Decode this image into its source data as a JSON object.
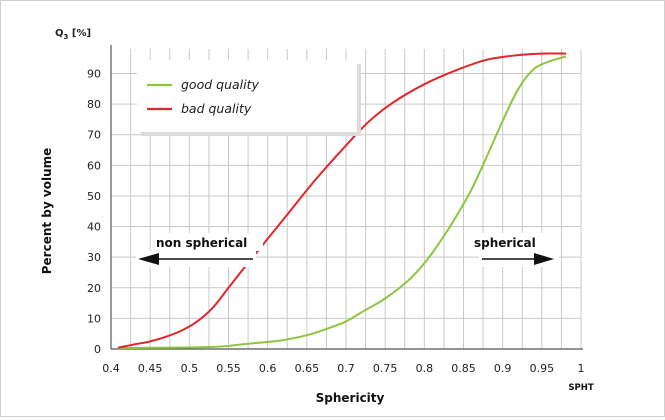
{
  "chart_data": {
    "type": "line",
    "ylabel_top": "Q",
    "ylabel_top_sub": "3",
    "ylabel_top_unit": " [%]",
    "ylabel": "Percent by volume",
    "xlabel": "Sphericity",
    "xunit": "SPHT",
    "xlim": [
      0.4,
      1.0
    ],
    "ylim": [
      0,
      98
    ],
    "xticks": [
      "0.4",
      "0.45",
      "0.5",
      "0.55",
      "0.6",
      "0.65",
      "0.7",
      "0.75",
      "0.8",
      "0.85",
      "0.9",
      "0.95",
      "1"
    ],
    "yticks": [
      0,
      10,
      20,
      30,
      40,
      50,
      60,
      70,
      80,
      90
    ],
    "grid": true,
    "legend_position": "top-left",
    "series": [
      {
        "name": "good quality",
        "color": "#8dc63f",
        "x": [
          0.41,
          0.45,
          0.5,
          0.53,
          0.55,
          0.57,
          0.6,
          0.62,
          0.65,
          0.68,
          0.7,
          0.72,
          0.75,
          0.78,
          0.8,
          0.82,
          0.84,
          0.86,
          0.88,
          0.9,
          0.92,
          0.94,
          0.96,
          0.98
        ],
        "y": [
          0.3,
          0.4,
          0.5,
          0.7,
          1.0,
          1.6,
          2.3,
          2.9,
          4.5,
          7.0,
          9.0,
          12.0,
          16.5,
          22.5,
          28.0,
          35.0,
          43.0,
          52.0,
          63.0,
          74.5,
          85.0,
          91.5,
          94.0,
          95.5
        ]
      },
      {
        "name": "bad quality",
        "color": "#e3262c",
        "x": [
          0.41,
          0.43,
          0.45,
          0.47,
          0.49,
          0.51,
          0.53,
          0.55,
          0.57,
          0.6,
          0.63,
          0.66,
          0.7,
          0.73,
          0.76,
          0.8,
          0.84,
          0.88,
          0.92,
          0.95,
          0.98
        ],
        "y": [
          0.5,
          1.5,
          2.5,
          4.0,
          6.0,
          9.0,
          13.5,
          20.0,
          26.5,
          36.0,
          45.5,
          55.0,
          66.5,
          74.5,
          80.5,
          86.5,
          91.0,
          94.5,
          96.0,
          96.5,
          96.5
        ]
      }
    ],
    "annotations": [
      {
        "text": "non spherical",
        "direction": "left"
      },
      {
        "text": "spherical",
        "direction": "right"
      }
    ]
  }
}
